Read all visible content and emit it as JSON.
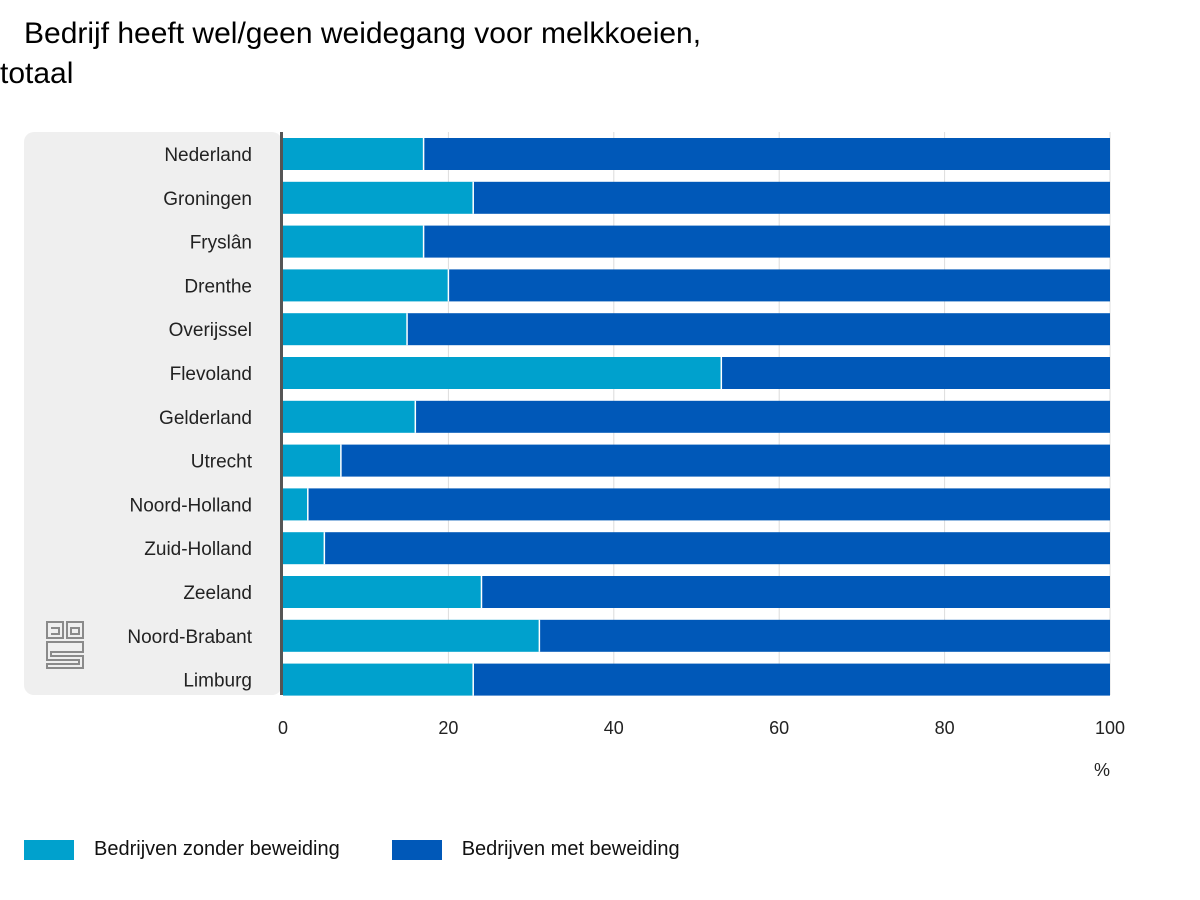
{
  "chart_data": {
    "type": "bar",
    "orientation": "horizontal",
    "stacked": true,
    "title": "Bedrijf heeft wel/geen weidegang voor melkkoeien, totaal",
    "title_lines": [
      "Bedrijf heeft wel/geen weidegang voor melkkoeien,",
      "totaal"
    ],
    "categories": [
      "Nederland",
      "Groningen",
      "Fryslân",
      "Drenthe",
      "Overijssel",
      "Flevoland",
      "Gelderland",
      "Utrecht",
      "Noord-Holland",
      "Zuid-Holland",
      "Zeeland",
      "Noord-Brabant",
      "Limburg"
    ],
    "series": [
      {
        "name": "Bedrijven zonder beweiding",
        "color": "#00a1cd",
        "values": [
          17,
          23,
          17,
          20,
          15,
          53,
          16,
          7,
          3,
          5,
          24,
          31,
          23
        ]
      },
      {
        "name": "Bedrijven met beweiding",
        "color": "#0058b8",
        "values": [
          83,
          77,
          83,
          80,
          85,
          47,
          84,
          93,
          97,
          95,
          76,
          69,
          77
        ]
      }
    ],
    "xlim": [
      0,
      100
    ],
    "xticks": [
      "0",
      "20",
      "40",
      "60",
      "80",
      "100"
    ],
    "xunit": "%",
    "grid": true,
    "legend_position": "bottom-left"
  },
  "logo": {
    "name": "cbs-logo",
    "text": "cbs"
  }
}
